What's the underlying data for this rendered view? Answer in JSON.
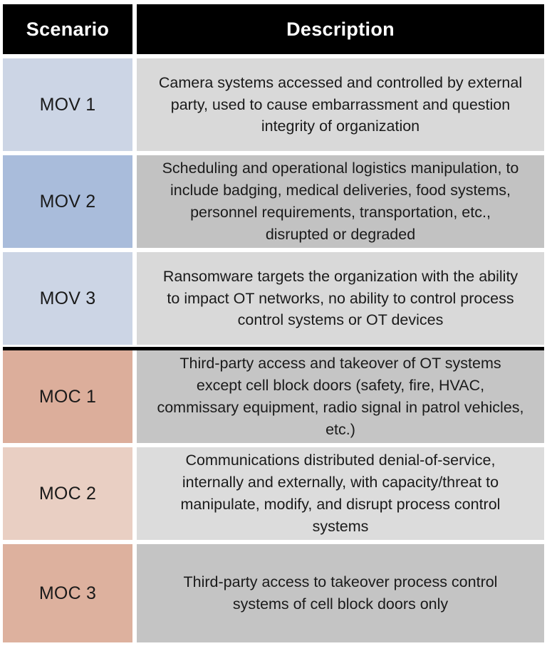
{
  "table": {
    "headers": {
      "scenario": "Scenario",
      "description": "Description"
    },
    "header_bg": "#000000",
    "rows": [
      {
        "scenario": "MOV 1",
        "description": "Camera systems accessed and controlled by external party, used to cause embarrassment and question integrity of organization",
        "scenario_bg": "#ccd5e5",
        "description_bg": "#d9d9d9"
      },
      {
        "scenario": "MOV 2",
        "description": "Scheduling and operational logistics manipulation, to include badging, medical deliveries, food systems, personnel requirements, transportation, etc., disrupted or degraded",
        "scenario_bg": "#a9bcdb",
        "description_bg": "#c2c2c2"
      },
      {
        "scenario": "MOV 3",
        "description": "Ransomware targets the organization with the ability to impact OT networks, no ability to control process control systems or OT devices",
        "scenario_bg": "#ccd5e5",
        "description_bg": "#d9d9d9"
      },
      {
        "scenario": "MOC 1",
        "description": "Third-party access and takeover of OT systems except cell block doors (safety, fire, HVAC, commissary equipment, radio signal in patrol vehicles, etc.)",
        "scenario_bg": "#dcae9b",
        "description_bg": "#c5c5c5"
      },
      {
        "scenario": "MOC 2",
        "description": "Communications distributed denial-of-service, internally and externally, with capacity/threat to manipulate, modify, and disrupt process control systems",
        "scenario_bg": "#e9cfc3",
        "description_bg": "#dcdcdc"
      },
      {
        "scenario": "MOC 3",
        "description": "Third-party access to takeover process control systems of cell block doors only",
        "scenario_bg": "#ddb19e",
        "description_bg": "#c4c4c4"
      }
    ],
    "divider_color": "#000000"
  }
}
